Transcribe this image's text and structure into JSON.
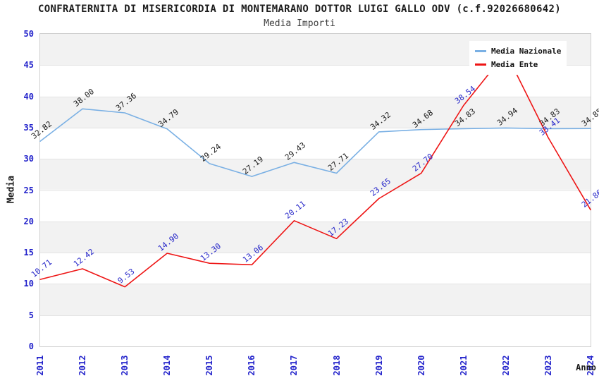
{
  "title": "CONFRATERNITA DI MISERICORDIA DI MONTEMARANO DOTTOR LUIGI GALLO ODV (c.f.92026680642)",
  "subtitle": "Media Importi",
  "axes": {
    "y_title": "Media",
    "x_title": "Anno",
    "y_ticks": [
      0,
      5,
      10,
      15,
      20,
      25,
      30,
      35,
      40,
      45,
      50
    ],
    "y_min": 0,
    "y_max": 50
  },
  "legend": {
    "items": [
      {
        "label": "Media Nazionale",
        "color": "#7ab0e4"
      },
      {
        "label": "Media Ente",
        "color": "#ee1515"
      }
    ],
    "position": "top-right"
  },
  "chart_data": {
    "type": "line",
    "title": "Media Importi",
    "xlabel": "Anno",
    "ylabel": "Media",
    "ylim": [
      0,
      50
    ],
    "grid": true,
    "alternating_bands": true,
    "legend_position": "top-right",
    "categories": [
      "2011",
      "2012",
      "2013",
      "2014",
      "2015",
      "2016",
      "2017",
      "2018",
      "2019",
      "2020",
      "2021",
      "2022",
      "2023",
      "2024"
    ],
    "series": [
      {
        "name": "Media Nazionale",
        "color": "#7ab0e4",
        "label_color": "#1a1a1a",
        "values": [
          32.82,
          38.0,
          37.36,
          34.79,
          29.24,
          27.19,
          29.43,
          27.71,
          34.32,
          34.68,
          34.83,
          34.94,
          34.83,
          34.85
        ],
        "labels": [
          "32.82",
          "38.00",
          "37.36",
          "34.79",
          "29.24",
          "27.19",
          "29.43",
          "27.71",
          "34.32",
          "34.68",
          "34.83",
          "34.94",
          "34.83",
          "34.85"
        ]
      },
      {
        "name": "Media Ente",
        "color": "#ee1515",
        "label_color": "#2626c9",
        "values": [
          10.71,
          12.42,
          9.53,
          14.9,
          13.3,
          13.06,
          20.11,
          17.23,
          23.65,
          27.7,
          38.54,
          47.0,
          33.41,
          21.86
        ],
        "labels": [
          "10.71",
          "12.42",
          "9.53",
          "14.90",
          "13.30",
          "13.06",
          "20.11",
          "17.23",
          "23.65",
          "27.70",
          "38.54",
          "",
          "33.41",
          "21.86"
        ],
        "note": "2022 data label is hidden behind the legend box; 2022 value estimated from line position (~47)"
      }
    ]
  }
}
